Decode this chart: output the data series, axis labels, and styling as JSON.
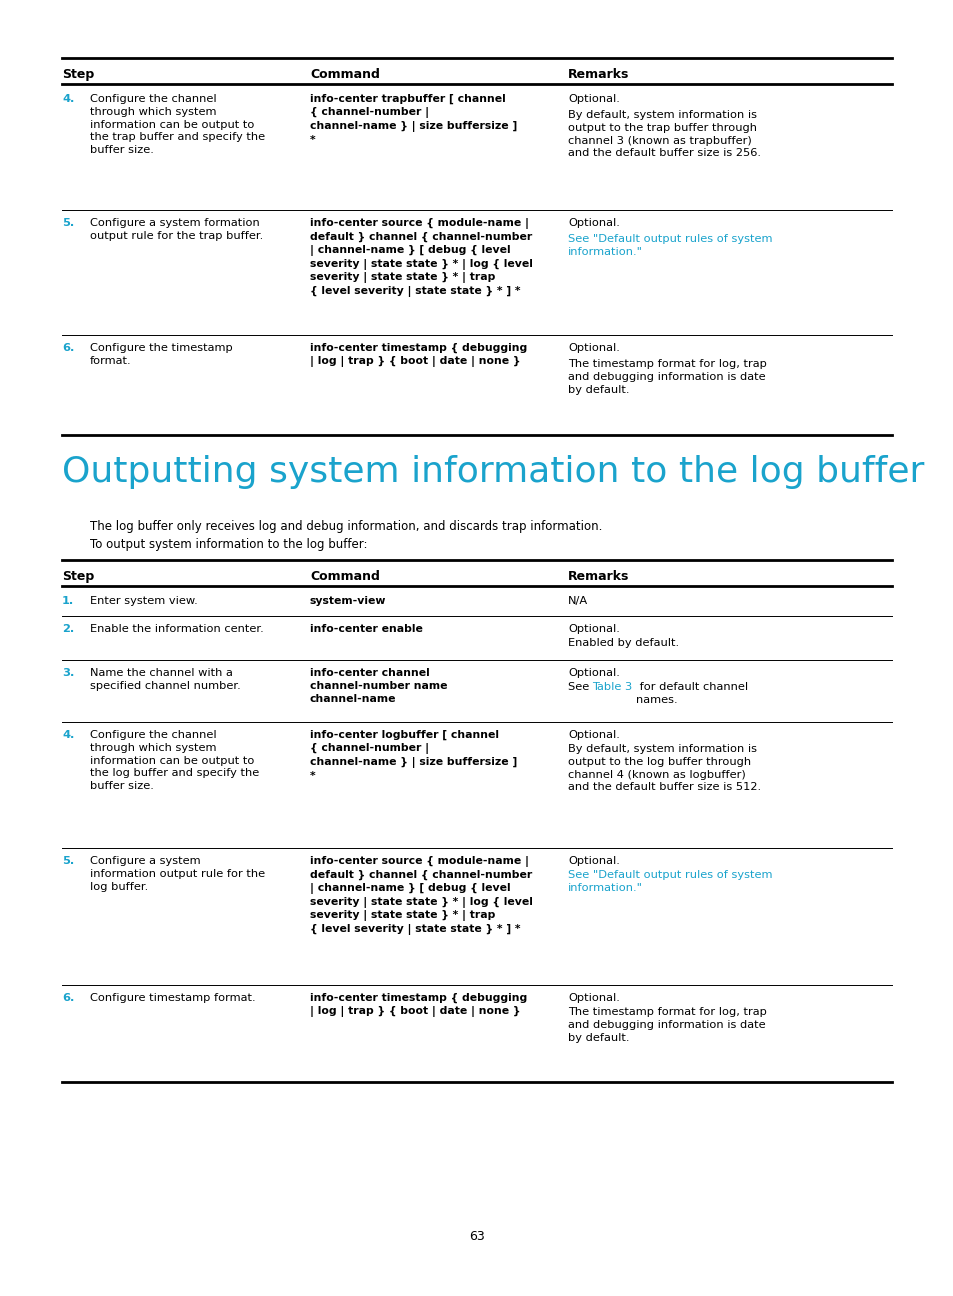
{
  "bg_color": "#ffffff",
  "text_color": "#000000",
  "cyan_color": "#1aa3cc",
  "page_number": "63",
  "section_title": "Outputting system information to the log buffer",
  "section_para1": "The log buffer only receives log and debug information, and discards trap information.",
  "section_para2": "To output system information to the log buffer:"
}
